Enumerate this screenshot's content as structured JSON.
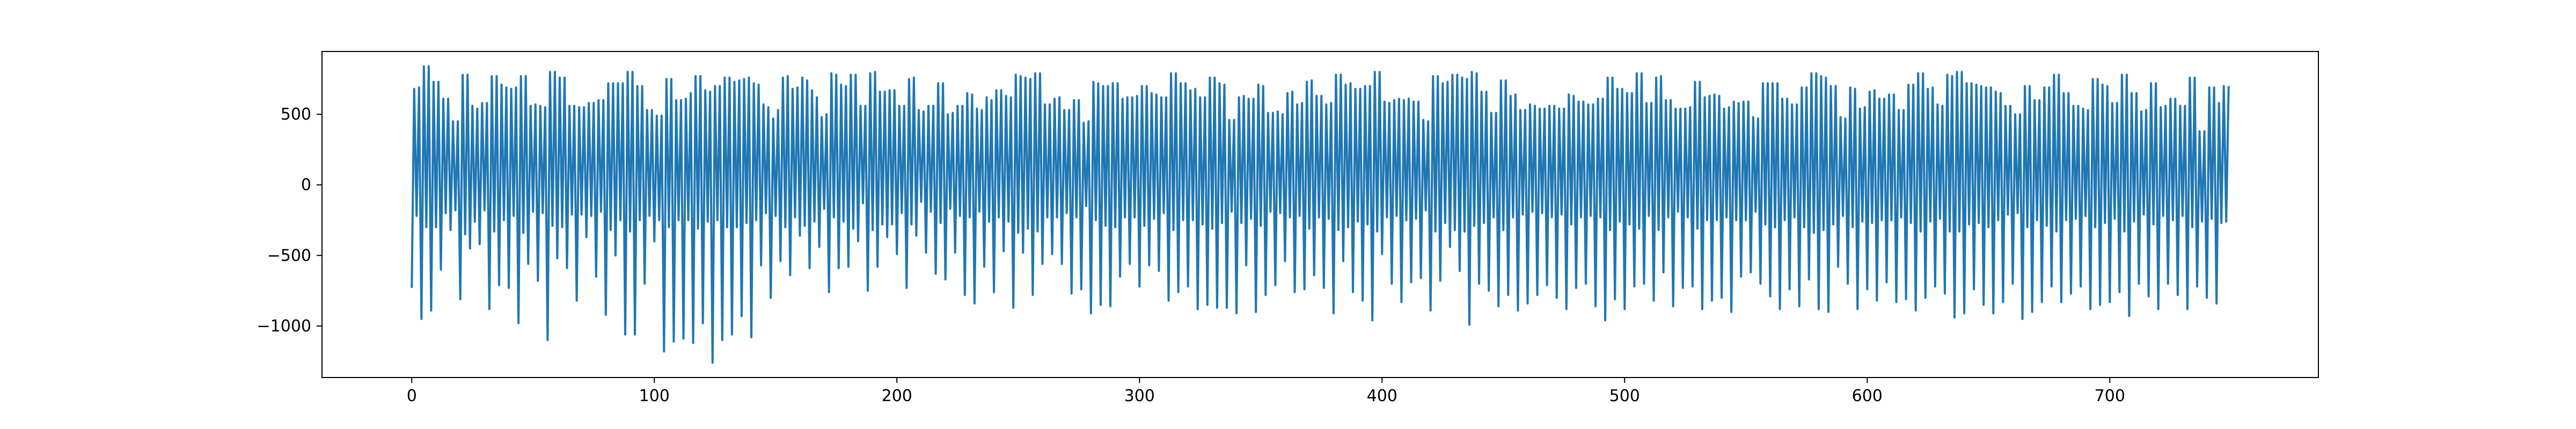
{
  "chart_data": {
    "type": "line",
    "title": "",
    "xlabel": "",
    "ylabel": "",
    "xlim": [
      -37,
      786
    ],
    "ylim": [
      -1365,
      945
    ],
    "xticks": [
      0,
      100,
      200,
      300,
      400,
      500,
      600,
      700
    ],
    "yticks": [
      -1000,
      -500,
      0,
      500
    ],
    "grid": false,
    "legend": "none",
    "series": [
      {
        "color": "#1f77b4",
        "x_start": 0,
        "x_step": 1,
        "y": [
          -730,
          680,
          -220,
          690,
          -950,
          840,
          -300,
          840,
          -890,
          730,
          -300,
          730,
          -600,
          610,
          -200,
          610,
          -320,
          450,
          -180,
          450,
          -810,
          780,
          -350,
          780,
          -450,
          560,
          -260,
          540,
          -420,
          580,
          -180,
          580,
          -880,
          770,
          -330,
          770,
          -710,
          710,
          -250,
          690,
          -730,
          680,
          -220,
          690,
          -980,
          770,
          -340,
          770,
          -560,
          560,
          -190,
          570,
          -680,
          560,
          -200,
          550,
          -1100,
          800,
          -290,
          800,
          -520,
          760,
          -300,
          760,
          -590,
          560,
          -210,
          560,
          -820,
          550,
          -210,
          550,
          -370,
          580,
          -220,
          580,
          -650,
          600,
          -190,
          600,
          -920,
          720,
          -320,
          720,
          -500,
          720,
          -250,
          720,
          -1060,
          800,
          -330,
          800,
          -1060,
          700,
          -250,
          700,
          -700,
          530,
          -220,
          530,
          -400,
          490,
          -250,
          490,
          -1180,
          750,
          -300,
          750,
          -1110,
          600,
          -250,
          600,
          -1090,
          610,
          -250,
          650,
          -1120,
          770,
          -310,
          770,
          -980,
          670,
          -260,
          660,
          -1260,
          700,
          -250,
          700,
          -1100,
          760,
          -300,
          760,
          -1060,
          730,
          -300,
          740,
          -930,
          750,
          -270,
          760,
          -1080,
          720,
          -250,
          710,
          -570,
          570,
          -200,
          550,
          -800,
          470,
          -220,
          530,
          -540,
          760,
          -300,
          770,
          -640,
          680,
          -230,
          690,
          -360,
          760,
          -290,
          740,
          -590,
          670,
          -260,
          620,
          -440,
          480,
          -170,
          500,
          -760,
          790,
          -230,
          780,
          -590,
          710,
          -260,
          700,
          -580,
          780,
          -310,
          780,
          -400,
          560,
          -130,
          560,
          -750,
          790,
          -320,
          800,
          -580,
          660,
          -280,
          660,
          -370,
          670,
          -280,
          670,
          -490,
          560,
          -200,
          560,
          -730,
          750,
          -280,
          760,
          -360,
          530,
          -120,
          520,
          -480,
          560,
          -190,
          560,
          -630,
          720,
          -270,
          720,
          -670,
          500,
          -170,
          510,
          -480,
          560,
          -220,
          560,
          -780,
          650,
          -230,
          640,
          -840,
          540,
          -190,
          530,
          -580,
          620,
          -260,
          600,
          -760,
          670,
          -230,
          670,
          -470,
          630,
          -260,
          620,
          -870,
          780,
          -340,
          770,
          -480,
          760,
          -310,
          750,
          -780,
          790,
          -330,
          790,
          -560,
          570,
          -230,
          570,
          -490,
          610,
          -230,
          620,
          -560,
          530,
          -200,
          530,
          -770,
          600,
          -230,
          600,
          -740,
          440,
          -150,
          450,
          -910,
          730,
          -250,
          720,
          -850,
          700,
          -290,
          700,
          -860,
          720,
          -300,
          720,
          -650,
          610,
          -230,
          620,
          -560,
          620,
          -230,
          630,
          -720,
          700,
          -290,
          700,
          -570,
          650,
          -240,
          640,
          -610,
          620,
          -200,
          620,
          -820,
          790,
          -320,
          790,
          -760,
          720,
          -250,
          720,
          -720,
          670,
          -250,
          680,
          -880,
          620,
          -280,
          620,
          -850,
          760,
          -310,
          760,
          -870,
          720,
          -270,
          710,
          -870,
          460,
          -190,
          460,
          -910,
          620,
          -270,
          630,
          -570,
          610,
          -240,
          610,
          -900,
          710,
          -290,
          700,
          -780,
          510,
          -190,
          510,
          -710,
          520,
          -200,
          500,
          -540,
          650,
          -230,
          660,
          -760,
          570,
          -220,
          580,
          -740,
          730,
          -310,
          740,
          -640,
          630,
          -230,
          630,
          -730,
          570,
          -240,
          580,
          -910,
          780,
          -320,
          780,
          -540,
          710,
          -300,
          720,
          -760,
          680,
          -260,
          680,
          -820,
          700,
          -280,
          700,
          -960,
          800,
          -330,
          800,
          -490,
          590,
          -230,
          580,
          -700,
          600,
          -220,
          610,
          -830,
          600,
          -250,
          610,
          -690,
          590,
          -240,
          590,
          -660,
          460,
          -180,
          450,
          -890,
          770,
          -330,
          770,
          -680,
          720,
          -270,
          730,
          -440,
          780,
          -320,
          780,
          -610,
          760,
          -330,
          750,
          -990,
          800,
          -290,
          790,
          -700,
          660,
          -270,
          660,
          -750,
          510,
          -230,
          510,
          -860,
          740,
          -320,
          740,
          -780,
          630,
          -230,
          640,
          -890,
          530,
          -210,
          530,
          -840,
          570,
          -190,
          560,
          -780,
          540,
          -200,
          540,
          -710,
          560,
          -230,
          560,
          -800,
          540,
          -210,
          540,
          -880,
          640,
          -280,
          630,
          -730,
          590,
          -230,
          590,
          -700,
          570,
          -220,
          570,
          -860,
          610,
          -230,
          610,
          -960,
          760,
          -320,
          760,
          -810,
          680,
          -260,
          680,
          -880,
          650,
          -280,
          650,
          -720,
          790,
          -310,
          790,
          -700,
          580,
          -220,
          580,
          -820,
          760,
          -320,
          770,
          -620,
          600,
          -230,
          600,
          -860,
          540,
          -190,
          540,
          -730,
          540,
          -230,
          550,
          -720,
          730,
          -310,
          730,
          -880,
          620,
          -250,
          630,
          -820,
          640,
          -250,
          630,
          -800,
          540,
          -230,
          550,
          -900,
          590,
          -250,
          580,
          -650,
          590,
          -250,
          590,
          -620,
          480,
          -190,
          470,
          -700,
          720,
          -280,
          720,
          -790,
          720,
          -300,
          720,
          -880,
          610,
          -250,
          610,
          -740,
          570,
          -230,
          570,
          -860,
          690,
          -300,
          690,
          -670,
          790,
          -340,
          790,
          -880,
          770,
          -320,
          760,
          -900,
          700,
          -280,
          700,
          -580,
          480,
          -220,
          470,
          -700,
          690,
          -300,
          680,
          -880,
          540,
          -260,
          550,
          -740,
          660,
          -270,
          670,
          -820,
          610,
          -250,
          610,
          -690,
          640,
          -250,
          640,
          -830,
          530,
          -230,
          530,
          -810,
          710,
          -270,
          710,
          -890,
          790,
          -330,
          790,
          -800,
          680,
          -260,
          690,
          -720,
          570,
          -240,
          560,
          -770,
          780,
          -330,
          770,
          -940,
          800,
          -330,
          800,
          -910,
          720,
          -280,
          720,
          -740,
          710,
          -270,
          700,
          -850,
          690,
          -300,
          690,
          -910,
          660,
          -250,
          650,
          -830,
          560,
          -210,
          560,
          -700,
          500,
          -200,
          500,
          -950,
          700,
          -300,
          700,
          -900,
          600,
          -250,
          600,
          -830,
          690,
          -290,
          690,
          -720,
          780,
          -330,
          780,
          -830,
          650,
          -250,
          650,
          -770,
          560,
          -240,
          560,
          -720,
          540,
          -220,
          530,
          -880,
          750,
          -300,
          750,
          -850,
          710,
          -270,
          700,
          -830,
          580,
          -240,
          580,
          -760,
          780,
          -330,
          780,
          -930,
          650,
          -260,
          650,
          -700,
          520,
          -210,
          530,
          -790,
          720,
          -280,
          720,
          -880,
          550,
          -220,
          560,
          -700,
          610,
          -250,
          610,
          -780,
          560,
          -220,
          560,
          -880,
          760,
          -300,
          760,
          -720,
          380,
          -260,
          380,
          -800,
          690,
          -240,
          690,
          -840,
          580,
          -270,
          700,
          -260,
          700
        ]
      }
    ]
  }
}
